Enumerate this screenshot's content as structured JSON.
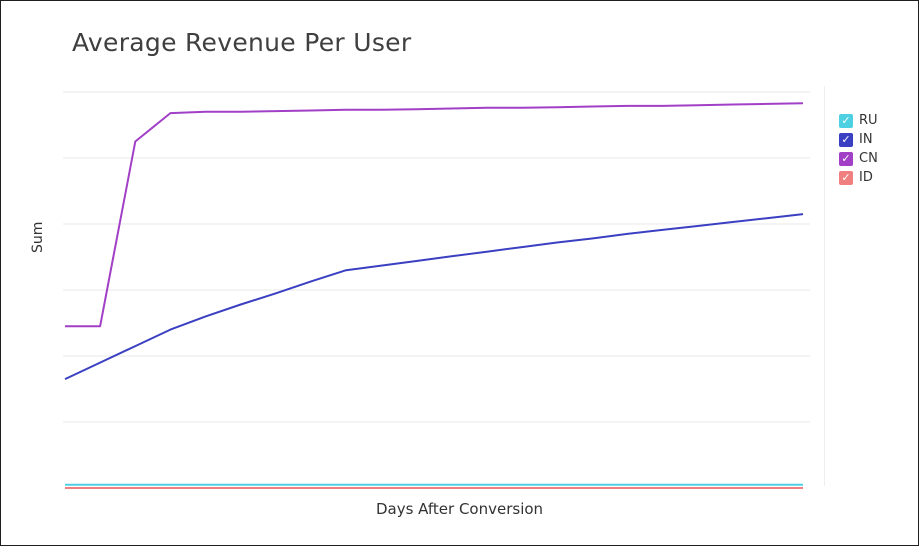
{
  "chart_data": {
    "type": "line",
    "title": "Average Revenue Per User",
    "xlabel": "Days After Conversion",
    "ylabel": "Sum",
    "grid": true,
    "legend_position": "right",
    "x": [
      0,
      1,
      2,
      3,
      4,
      5,
      6,
      7,
      8,
      9,
      10,
      11,
      12,
      13,
      14,
      15,
      16,
      17,
      18,
      19,
      20,
      21
    ],
    "ylim": [
      0,
      6
    ],
    "series": [
      {
        "name": "RU",
        "color": "#4dd0e1",
        "values": [
          0.05,
          0.05,
          0.05,
          0.05,
          0.05,
          0.05,
          0.05,
          0.05,
          0.05,
          0.05,
          0.05,
          0.05,
          0.05,
          0.05,
          0.05,
          0.05,
          0.05,
          0.05,
          0.05,
          0.05,
          0.05,
          0.05
        ]
      },
      {
        "name": "IN",
        "color": "#3b40c2",
        "values": [
          1.65,
          1.9,
          2.15,
          2.4,
          2.6,
          2.78,
          2.95,
          3.13,
          3.3,
          3.37,
          3.44,
          3.51,
          3.58,
          3.65,
          3.72,
          3.78,
          3.85,
          3.91,
          3.97,
          4.03,
          4.09,
          4.15
        ]
      },
      {
        "name": "CN",
        "color": "#a13fc6",
        "values": [
          2.45,
          2.45,
          5.25,
          5.68,
          5.7,
          5.7,
          5.71,
          5.72,
          5.73,
          5.73,
          5.74,
          5.75,
          5.76,
          5.76,
          5.77,
          5.78,
          5.79,
          5.79,
          5.8,
          5.81,
          5.82,
          5.83
        ]
      },
      {
        "name": "ID",
        "color": "#f08080",
        "values": [
          0.0,
          0.0,
          0.0,
          0.0,
          0.0,
          0.0,
          0.0,
          0.0,
          0.0,
          0.0,
          0.0,
          0.0,
          0.0,
          0.0,
          0.0,
          0.0,
          0.0,
          0.0,
          0.0,
          0.0,
          0.0,
          0.0
        ]
      }
    ]
  }
}
